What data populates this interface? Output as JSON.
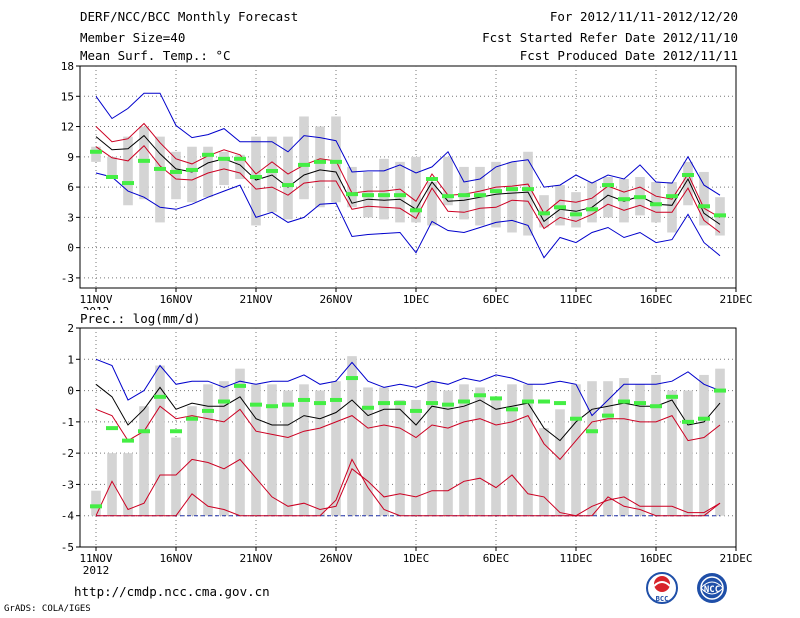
{
  "header": {
    "title": "DERF/NCC/BCC Monthly Forecast",
    "member_size": "Member Size=40",
    "variable": "Mean Surf. Temp.: °C",
    "period": "For 2012/11/11-2012/12/20",
    "start_date": "Fcst Started Refer Date 2012/11/10",
    "produced_date": "Fcst Produced Date 2012/11/11"
  },
  "footer": {
    "url": "http://cmdp.ncc.cma.gov.cn",
    "grads_label": "GrADS: COLA/IGES",
    "logo_left_text": "BCC",
    "logo_right_text": "NCC"
  },
  "colors": {
    "envelope": "#0000cc",
    "spread": "#cc0022",
    "mean": "#000000",
    "obs": "#44ee44",
    "box": "#d4d4d4",
    "dashed_floor": "#2233aa"
  },
  "chart_data": [
    {
      "type": "line",
      "name": "temperature",
      "title": "Mean Surf. Temp.: °C",
      "xlabel": "",
      "ylabel": "",
      "ylim": [
        -4,
        18
      ],
      "yticks": [
        -3,
        0,
        3,
        6,
        9,
        12,
        15,
        18
      ],
      "xlim": [
        0,
        39
      ],
      "xtick_index": [
        0,
        5,
        10,
        15,
        20,
        25,
        30,
        35,
        40
      ],
      "xtick_labels": [
        "11NOV",
        "16NOV",
        "21NOV",
        "26NOV",
        "1DEC",
        "6DEC",
        "11DEC",
        "16DEC",
        "21DEC"
      ],
      "year_label": "2012",
      "box_low": [
        8.5,
        7,
        4.2,
        4.8,
        2.5,
        4.8,
        4.5,
        5,
        6.2,
        6.8,
        2.2,
        3.5,
        2.8,
        4.8,
        4,
        4.5,
        4,
        3,
        2.8,
        2.5,
        2.5,
        2.2,
        4.2,
        2.8,
        2.2,
        2,
        1.5,
        1.2,
        2,
        2.2,
        2,
        2.5,
        3,
        2.5,
        3.2,
        2.5,
        1.5,
        4.2,
        2.2,
        1.2
      ],
      "box_high": [
        10,
        9,
        11,
        12,
        11,
        9.5,
        10,
        10,
        9.5,
        9.2,
        11,
        11,
        11,
        13,
        12,
        13,
        8,
        7.5,
        8.8,
        8.5,
        9,
        6.5,
        9,
        8,
        8,
        8.5,
        8.5,
        9.5,
        5.2,
        6.2,
        5.5,
        6.5,
        7,
        6.8,
        7,
        6.5,
        6.5,
        8.5,
        7.5,
        5
      ],
      "series": [
        {
          "name": "ensemble max",
          "values": [
            15,
            12.8,
            13.8,
            15.3,
            15.3,
            12.1,
            10.9,
            11.2,
            11.8,
            10.5,
            10.5,
            10.5,
            9.5,
            11.1,
            10.9,
            10.6,
            7.5,
            7.6,
            7.6,
            8.2,
            7.4,
            8,
            9.5,
            6.5,
            6.8,
            8,
            8.5,
            8.7,
            6,
            6.2,
            7.2,
            6.4,
            7.2,
            6.8,
            8.2,
            6.5,
            6.4,
            9,
            6.2,
            5.2
          ]
        },
        {
          "name": "ensemble upper",
          "values": [
            12,
            10.5,
            10.8,
            12.3,
            10.4,
            8.8,
            8.3,
            9.1,
            9.7,
            9.2,
            7.3,
            8.5,
            7.3,
            8.2,
            8.8,
            8.6,
            5.4,
            5.6,
            5.6,
            5.8,
            4.6,
            7.3,
            5.2,
            5.3,
            5.6,
            6,
            6.1,
            6.3,
            3.4,
            4.7,
            4.5,
            4.9,
            6.1,
            5.5,
            6,
            5.1,
            4.8,
            7.3,
            3.9,
            3
          ]
        },
        {
          "name": "ensemble mean",
          "values": [
            11,
            9.7,
            9.8,
            11.1,
            9.3,
            7.8,
            7.5,
            8.4,
            8.8,
            8.2,
            6.7,
            7.2,
            6,
            7.2,
            7.7,
            7.5,
            4.4,
            4.8,
            4.7,
            4.8,
            3.8,
            6.5,
            4.6,
            4.7,
            5,
            5.3,
            5.4,
            5.5,
            2.6,
            3.8,
            3.6,
            4,
            5.2,
            4.6,
            5.1,
            4.3,
            4.2,
            6.8,
            3.4,
            2.3
          ]
        },
        {
          "name": "ensemble lower",
          "values": [
            10,
            8.9,
            8.6,
            10.1,
            8.1,
            6.8,
            6.7,
            7.4,
            7.8,
            7.4,
            5.8,
            6,
            5.2,
            6.4,
            6.6,
            6.6,
            3.8,
            4.1,
            4,
            3.9,
            2.9,
            5.9,
            3.6,
            3.5,
            3.9,
            4,
            4.7,
            4.6,
            1.9,
            3,
            2.6,
            3.3,
            4.3,
            3.7,
            4.2,
            3.5,
            3.5,
            5.9,
            2.7,
            1.5
          ]
        },
        {
          "name": "ensemble min",
          "values": [
            7.4,
            7,
            5.6,
            5,
            4,
            3.8,
            4.3,
            5,
            5.6,
            6.2,
            3,
            3.5,
            2.5,
            3,
            4.3,
            4.4,
            1.1,
            1.3,
            1.4,
            1.5,
            -0.5,
            2.6,
            1.7,
            1.5,
            2,
            2.5,
            2.7,
            2.2,
            -1,
            1,
            0.5,
            1.5,
            2,
            1,
            1.5,
            0.5,
            0.8,
            3.3,
            0.5,
            -0.8
          ]
        },
        {
          "name": "observed",
          "values": [
            9.5,
            7,
            6.4,
            8.6,
            7.8,
            7.5,
            7.7,
            9.2,
            8.8,
            8.8,
            7,
            7.6,
            6.2,
            8.2,
            8.5,
            8.5,
            5.3,
            5.2,
            5.2,
            5.2,
            3.7,
            6.8,
            5.1,
            5.2,
            5.2,
            5.6,
            5.8,
            5.8,
            3.4,
            4,
            3.3,
            3.8,
            6.2,
            4.8,
            5,
            4.3,
            5.1,
            7.2,
            4.1,
            3.2
          ]
        }
      ]
    },
    {
      "type": "line",
      "name": "precipitation",
      "title": "Prec.: log(mm/d)",
      "xlabel": "",
      "ylabel": "",
      "ylim": [
        -5,
        2
      ],
      "yticks": [
        -5,
        -4,
        -3,
        -2,
        -1,
        0,
        1,
        2
      ],
      "xlim": [
        0,
        39
      ],
      "xtick_index": [
        0,
        5,
        10,
        15,
        20,
        25,
        30,
        35,
        40
      ],
      "xtick_labels": [
        "11NOV",
        "16NOV",
        "21NOV",
        "26NOV",
        "1DEC",
        "6DEC",
        "11DEC",
        "16DEC",
        "21DEC"
      ],
      "year_label": "2012",
      "floor_value": -4,
      "box_low": [
        -4,
        -4,
        -4,
        -4,
        -4,
        -4,
        -4,
        -4,
        -4,
        -4,
        -4,
        -4,
        -4,
        -4,
        -4,
        -4,
        -4,
        -4,
        -4,
        -4,
        -4,
        -4,
        -4,
        -4,
        -4,
        -4,
        -4,
        -4,
        -4,
        -4,
        -4,
        -4,
        -4,
        -4,
        -4,
        -4,
        -4,
        -4,
        -4,
        -4
      ],
      "box_high": [
        -3.2,
        -2,
        -2,
        -0.5,
        0.8,
        -1.5,
        -0.5,
        0.2,
        0.3,
        0.7,
        0.2,
        0.2,
        0,
        0.2,
        0,
        0.3,
        1.1,
        0.1,
        0.1,
        -0.3,
        -0.3,
        0.3,
        0,
        0.2,
        0.1,
        -0.2,
        0.2,
        0.2,
        -1.2,
        -0.6,
        0.2,
        0.3,
        0.3,
        0.4,
        0.2,
        0.5,
        0,
        0,
        0.5,
        0.7
      ],
      "series": [
        {
          "name": "ensemble max",
          "values": [
            1,
            0.8,
            -0.3,
            0,
            0.8,
            0.2,
            0.3,
            0.3,
            0.1,
            0.3,
            0.2,
            0.3,
            0.3,
            0.5,
            0.2,
            0.3,
            0.9,
            0.3,
            0.1,
            0.2,
            0.1,
            0.3,
            0.2,
            0.4,
            0.3,
            0.5,
            0.4,
            0.2,
            0.2,
            0.3,
            0.2,
            -0.8,
            -0.3,
            0.2,
            0.2,
            0.2,
            0.3,
            0.6,
            0.2,
            0
          ]
        },
        {
          "name": "ensemble mean",
          "values": [
            0.2,
            -0.2,
            -1.1,
            -0.6,
            0.1,
            -0.6,
            -0.4,
            -0.5,
            -0.5,
            -0.2,
            -0.9,
            -1.1,
            -1.1,
            -0.8,
            -0.9,
            -0.7,
            -0.3,
            -0.8,
            -0.6,
            -0.6,
            -1.1,
            -0.5,
            -0.6,
            -0.5,
            -0.3,
            -0.6,
            -0.5,
            -0.4,
            -1.2,
            -1.6,
            -1,
            -0.6,
            -0.5,
            -0.4,
            -0.5,
            -0.5,
            -0.3,
            -1.1,
            -1,
            -0.4
          ]
        },
        {
          "name": "ensemble upper",
          "values": [
            -0.6,
            -0.8,
            -1.6,
            -1.3,
            -0.5,
            -0.9,
            -0.8,
            -0.9,
            -1,
            -0.6,
            -1.3,
            -1.4,
            -1.5,
            -1.3,
            -1.2,
            -1,
            -0.8,
            -1.2,
            -1.1,
            -1.2,
            -1.5,
            -1.1,
            -1.2,
            -1,
            -0.9,
            -1.1,
            -1,
            -0.8,
            -1.7,
            -2.2,
            -1.6,
            -1,
            -0.9,
            -0.9,
            -1,
            -1,
            -0.8,
            -1.6,
            -1.5,
            -1.1
          ]
        },
        {
          "name": "ensemble lower",
          "values": [
            -4,
            -2.9,
            -3.8,
            -3.6,
            -2.7,
            -2.7,
            -2.2,
            -2.3,
            -2.5,
            -2.2,
            -2.8,
            -3.4,
            -3.7,
            -3.6,
            -3.8,
            -3.7,
            -2.5,
            -2.9,
            -3.4,
            -3.3,
            -3.4,
            -3.2,
            -3.2,
            -2.9,
            -2.8,
            -3.1,
            -2.7,
            -3.3,
            -3.4,
            -3.9,
            -4,
            -3.7,
            -3.5,
            -3.4,
            -3.7,
            -3.7,
            -3.7,
            -3.9,
            -3.9,
            -3.6
          ]
        },
        {
          "name": "ensemble lowest",
          "values": [
            -4,
            -4,
            -4,
            -4,
            -4,
            -4,
            -3.3,
            -3.7,
            -3.8,
            -4,
            -4,
            -4,
            -4,
            -4,
            -4,
            -3.5,
            -2.2,
            -3.1,
            -3.8,
            -4,
            -4,
            -4,
            -4,
            -4,
            -4,
            -4,
            -4,
            -4,
            -4,
            -4,
            -4,
            -4,
            -3.4,
            -3.7,
            -3.8,
            -4,
            -4,
            -4,
            -4,
            -3.6
          ]
        },
        {
          "name": "observed",
          "values": [
            -3.7,
            -1.2,
            -1.6,
            -1.3,
            -0.2,
            -1.3,
            -0.9,
            -0.65,
            -0.35,
            0.15,
            -0.45,
            -0.5,
            -0.45,
            -0.3,
            -0.4,
            -0.3,
            0.4,
            -0.55,
            -0.4,
            -0.4,
            -0.65,
            -0.4,
            -0.45,
            -0.35,
            -0.15,
            -0.25,
            -0.6,
            -0.35,
            -0.35,
            -0.4,
            -0.9,
            -1.3,
            -0.8,
            -0.35,
            -0.4,
            -0.5,
            -0.2,
            -1,
            -0.9,
            0
          ]
        }
      ]
    }
  ]
}
